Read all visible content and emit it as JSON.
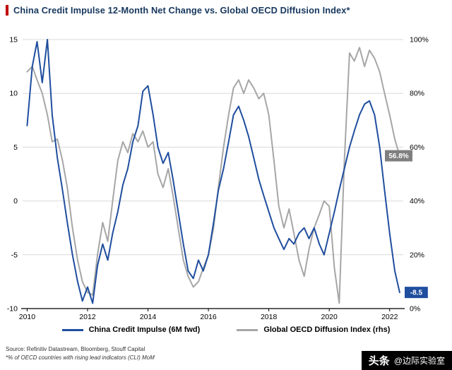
{
  "header": {
    "title": "China Credit Impulse 12-Month Net Change vs. Global OECD Diffusion Index*"
  },
  "colors": {
    "accent_red": "#c00000",
    "title_navy": "#17375d",
    "cci_blue": "#1f4e9e",
    "oecd_gray": "#a6a6a6",
    "grid_gray": "#d9d9d9",
    "badge_gray": "#7f7f7f"
  },
  "chart_data": {
    "type": "line",
    "title": "China Credit Impulse 12-Month Net Change vs. Global OECD Diffusion Index*",
    "xlabel": "",
    "ylabel_left": "",
    "ylabel_right": "",
    "grid": true,
    "legend_position": "bottom",
    "xlim": [
      2009.85,
      2022.45
    ],
    "ylim_left": [
      -10,
      15
    ],
    "ylim_right": [
      0,
      100
    ],
    "x_ticks": [
      2010,
      2012,
      2014,
      2016,
      2018,
      2020,
      2022
    ],
    "left_ticks": [
      15,
      10,
      5,
      0,
      -5,
      -10
    ],
    "right_ticks": [
      "100%",
      "80%",
      "60%",
      "40%",
      "20%",
      "0%"
    ],
    "x": [
      2010,
      2010.17,
      2010.33,
      2010.5,
      2010.67,
      2010.83,
      2011,
      2011.17,
      2011.33,
      2011.5,
      2011.67,
      2011.83,
      2012,
      2012.17,
      2012.33,
      2012.5,
      2012.67,
      2012.83,
      2013,
      2013.17,
      2013.33,
      2013.5,
      2013.67,
      2013.83,
      2014,
      2014.17,
      2014.33,
      2014.5,
      2014.67,
      2014.83,
      2015,
      2015.17,
      2015.33,
      2015.5,
      2015.67,
      2015.83,
      2016,
      2016.17,
      2016.33,
      2016.5,
      2016.67,
      2016.83,
      2017,
      2017.17,
      2017.33,
      2017.5,
      2017.67,
      2017.83,
      2018,
      2018.17,
      2018.33,
      2018.5,
      2018.67,
      2018.83,
      2019,
      2019.17,
      2019.33,
      2019.5,
      2019.67,
      2019.83,
      2020,
      2020.17,
      2020.33,
      2020.5,
      2020.67,
      2020.83,
      2021,
      2021.17,
      2021.33,
      2021.5,
      2021.67,
      2021.83,
      2022,
      2022.17,
      2022.33
    ],
    "series": [
      {
        "name": "China Credit Impulse (6M fwd)",
        "axis": "left",
        "color": "#1f4e9e",
        "values": [
          7,
          12.5,
          14.8,
          11,
          15,
          8,
          4,
          1,
          -2,
          -5,
          -7.5,
          -9.3,
          -8,
          -9.5,
          -6,
          -4,
          -5.5,
          -3,
          -1,
          1.5,
          3,
          5.5,
          7,
          10.2,
          10.7,
          8,
          5,
          3.5,
          4.5,
          2,
          -1,
          -4,
          -6.5,
          -7.2,
          -5.5,
          -6.5,
          -5,
          -2,
          1,
          3,
          5.5,
          8,
          8.8,
          7.5,
          6,
          4,
          2,
          0.5,
          -1,
          -2.5,
          -3.5,
          -4.5,
          -3.5,
          -4,
          -3,
          -2.5,
          -3.5,
          -2.5,
          -4,
          -5,
          -3,
          -1,
          1,
          3,
          5,
          6.5,
          8,
          9,
          9.3,
          8,
          5,
          1,
          -3,
          -6.5,
          -8.5
        ]
      },
      {
        "name": "Global OECD Diffusion Index (rhs)",
        "axis": "right",
        "color": "#a6a6a6",
        "values": [
          88,
          90,
          85,
          80,
          72,
          62,
          63,
          55,
          45,
          30,
          18,
          10,
          6,
          5,
          20,
          32,
          25,
          40,
          55,
          62,
          58,
          65,
          62,
          66,
          60,
          62,
          50,
          45,
          52,
          42,
          30,
          18,
          12,
          8,
          10,
          15,
          20,
          30,
          45,
          60,
          72,
          82,
          85,
          80,
          85,
          82,
          78,
          80,
          72,
          55,
          38,
          30,
          37,
          28,
          18,
          12,
          22,
          30,
          35,
          40,
          38,
          15,
          2,
          55,
          95,
          92,
          97,
          90,
          96,
          93,
          88,
          80,
          72,
          63,
          56.8
        ]
      }
    ],
    "annotations": [
      {
        "label": "56.8%",
        "value": 56.8,
        "axis": "right",
        "color": "#7f7f7f"
      },
      {
        "label": "-8.5",
        "value": -8.5,
        "axis": "left",
        "color": "#1f4e9e"
      }
    ]
  },
  "footer": {
    "source": "Source: Refinitiv Datastream, Bloomberg, Stouff Capital",
    "note": "*% of OECD countries with rising lead indicators (CLI) MoM"
  },
  "watermark": {
    "brand": "头条",
    "handle": "@边际实验室"
  }
}
